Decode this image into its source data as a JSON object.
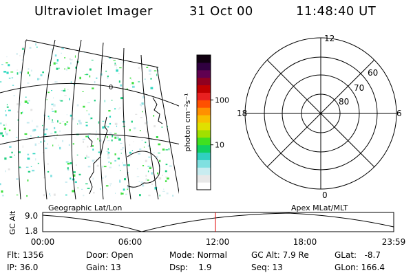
{
  "header": {
    "title": "Ultraviolet Imager",
    "date": "31 Oct 00",
    "time": "11:48:40 UT"
  },
  "geo_panel": {
    "label": "Geographic Lat/Lon",
    "grid_label": "0"
  },
  "colorbar": {
    "unit_label": "photon cm⁻²s⁻¹",
    "ticks": [
      {
        "value": 100,
        "label": "100"
      },
      {
        "value": 10,
        "label": "10"
      }
    ],
    "colors": [
      "#ffffff",
      "#e8e8e8",
      "#c8ecf0",
      "#80e0e0",
      "#30d0c0",
      "#10d060",
      "#40e020",
      "#a0e000",
      "#e0e000",
      "#f8c000",
      "#ff9000",
      "#ff5000",
      "#e82020",
      "#c00000",
      "#900020",
      "#600050",
      "#300040",
      "#100010"
    ]
  },
  "polar_panel": {
    "label": "Apex MLat/MLT",
    "mlt_labels": {
      "top": "12",
      "bottom": "0",
      "left": "18",
      "right": "6"
    },
    "lat_labels": [
      "60",
      "70",
      "80"
    ]
  },
  "timeline": {
    "axis_label": "GC Alt",
    "y_top": "9.0",
    "y_bottom": "1.8",
    "x_ticks": [
      "00:00",
      "06:00",
      "12:00",
      "18:00",
      "23:59"
    ],
    "marker_time": "11:48"
  },
  "info": {
    "flt": {
      "label": "Flt:",
      "value": "1356"
    },
    "ip": {
      "label": "IP:",
      "value": "36.0"
    },
    "door": {
      "label": "Door:",
      "value": "Open"
    },
    "gain": {
      "label": "Gain:",
      "value": "13"
    },
    "mode": {
      "label": "Mode:",
      "value": "Normal"
    },
    "dsp": {
      "label": "Dsp:",
      "value": "1.9"
    },
    "gcalt": {
      "label": "GC Alt:",
      "value": "7.9 Re"
    },
    "seq": {
      "label": "Seq:",
      "value": "13"
    },
    "glat": {
      "label": "GLat:",
      "value": "-8.7"
    },
    "glon": {
      "label": "GLon:",
      "value": "166.4"
    }
  }
}
